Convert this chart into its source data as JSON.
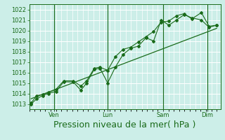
{
  "background_color": "#cceee8",
  "grid_color": "#ffffff",
  "line_color": "#1a6b1a",
  "ylim": [
    1012.5,
    1022.5
  ],
  "yticks": [
    1013,
    1014,
    1015,
    1016,
    1017,
    1018,
    1019,
    1020,
    1021,
    1022
  ],
  "xlabel": "Pression niveau de la mer( hPa )",
  "xlabel_color": "#1a6b1a",
  "xlabel_fontsize": 9,
  "tick_fontsize": 6,
  "tick_color": "#1a6b1a",
  "day_labels": [
    "Ven",
    "Lun",
    "Sam",
    "Dim"
  ],
  "day_positions": [
    0.13,
    0.41,
    0.7,
    0.93
  ],
  "vline_positions": [
    0.13,
    0.41,
    0.7,
    0.93
  ],
  "series1_x": [
    0.01,
    0.04,
    0.07,
    0.1,
    0.14,
    0.18,
    0.23,
    0.27,
    0.3,
    0.34,
    0.37,
    0.41,
    0.45,
    0.49,
    0.53,
    0.57,
    0.61,
    0.65,
    0.69,
    0.73,
    0.77,
    0.81,
    0.85,
    0.9,
    0.94,
    0.98
  ],
  "series1_y": [
    1013.0,
    1013.5,
    1013.8,
    1014.0,
    1014.2,
    1015.1,
    1015.1,
    1014.3,
    1015.0,
    1016.3,
    1016.4,
    1015.0,
    1016.5,
    1017.7,
    1018.3,
    1018.5,
    1019.3,
    1019.0,
    1021.0,
    1020.5,
    1021.0,
    1021.5,
    1021.2,
    1021.0,
    1020.3,
    1020.5
  ],
  "series2_x": [
    0.01,
    0.04,
    0.07,
    0.1,
    0.14,
    0.18,
    0.23,
    0.27,
    0.3,
    0.34,
    0.37,
    0.41,
    0.45,
    0.49,
    0.53,
    0.57,
    0.61,
    0.65,
    0.69,
    0.73,
    0.77,
    0.81,
    0.85,
    0.9,
    0.94,
    0.98
  ],
  "series2_y": [
    1013.1,
    1013.8,
    1013.9,
    1014.1,
    1014.4,
    1015.2,
    1015.2,
    1014.7,
    1015.2,
    1016.4,
    1016.5,
    1016.2,
    1017.5,
    1018.2,
    1018.4,
    1018.9,
    1019.4,
    1019.9,
    1020.8,
    1020.9,
    1021.4,
    1021.6,
    1021.1,
    1021.7,
    1020.4,
    1020.5
  ],
  "trend_x": [
    0.01,
    0.98
  ],
  "trend_y": [
    1013.5,
    1020.2
  ],
  "xlim": [
    0.0,
    1.0
  ]
}
